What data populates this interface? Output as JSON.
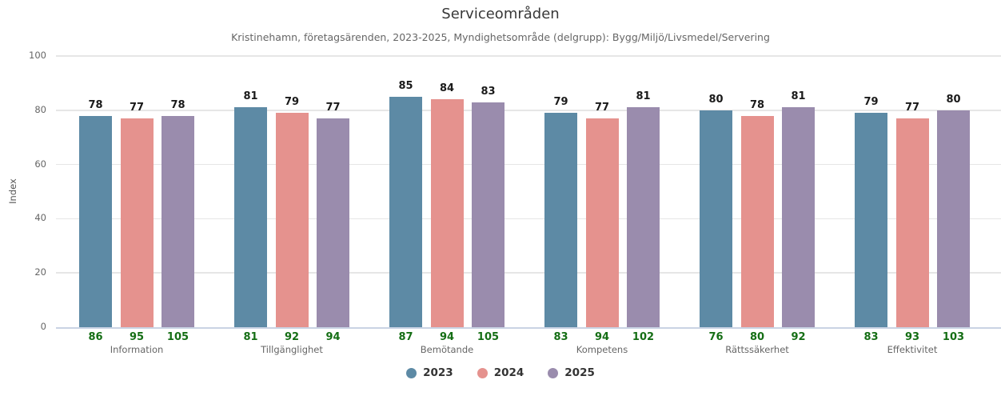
{
  "title": "Serviceområden",
  "subtitle": "Kristinehamn, företagsärenden, 2023-2025, Myndighetsområde (delgrupp): Bygg/Miljö/Livsmedel/Servering",
  "chart_data": {
    "type": "bar",
    "title": "Serviceområden",
    "subtitle": "Kristinehamn, företagsärenden, 2023-2025, Myndighetsområde (delgrupp): Bygg/Miljö/Livsmedel/Servering",
    "categories": [
      "Information",
      "Tillgänglighet",
      "Bemötande",
      "Kompetens",
      "Rättssäkerhet",
      "Effektivitet"
    ],
    "series": [
      {
        "name": "2023",
        "color": "#5d8aa5",
        "values": [
          78,
          81,
          85,
          79,
          80,
          79
        ],
        "counts": [
          86,
          81,
          87,
          83,
          76,
          83
        ]
      },
      {
        "name": "2024",
        "color": "#e5928e",
        "values": [
          77,
          79,
          84,
          77,
          78,
          77
        ],
        "counts": [
          95,
          92,
          94,
          94,
          80,
          93
        ]
      },
      {
        "name": "2025",
        "color": "#9a8cad",
        "values": [
          78,
          77,
          83,
          81,
          81,
          80
        ],
        "counts": [
          105,
          94,
          105,
          102,
          92,
          103
        ]
      }
    ],
    "xlabel": "",
    "ylabel": "Index",
    "ylim": [
      0,
      100
    ],
    "yticks": [
      0,
      20,
      40,
      60,
      80,
      100
    ],
    "grid": true,
    "legend_position": "bottom",
    "colors": {
      "value_label": "#1a1a1a",
      "count_label": "#156e15",
      "gridline": "#e6e6e6",
      "axis_line": "#c9d3e4",
      "tick_text": "#666666"
    }
  }
}
